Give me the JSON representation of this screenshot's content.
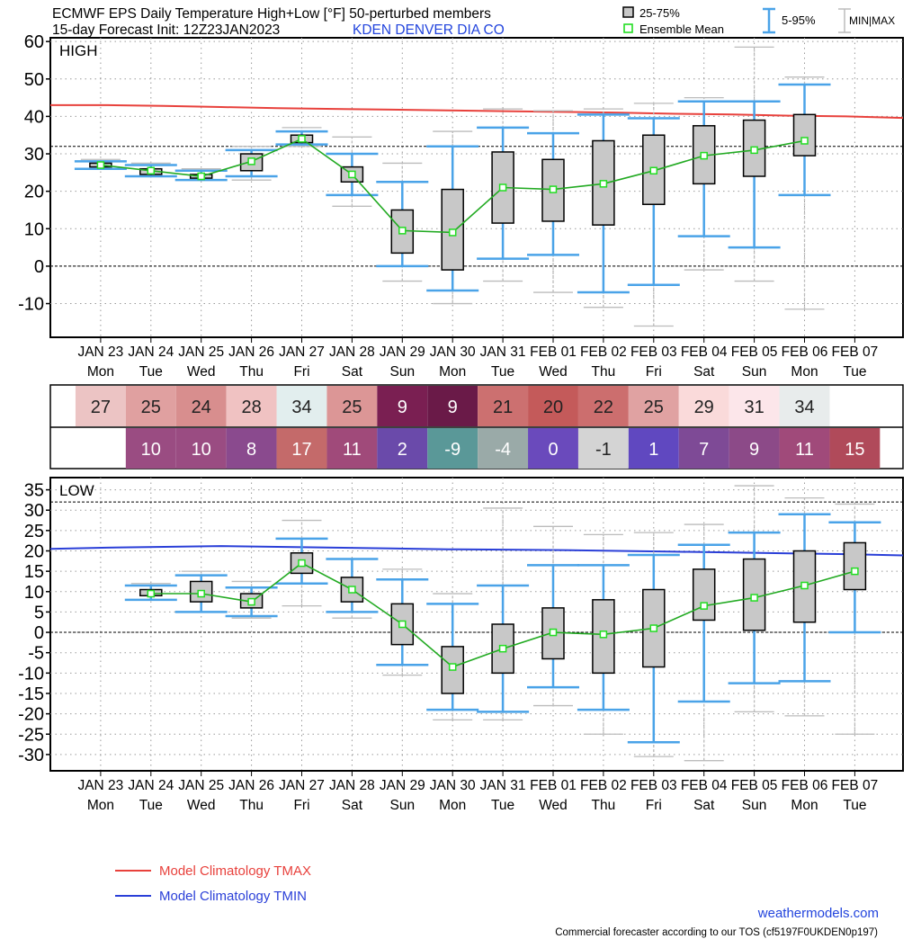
{
  "header": {
    "title_line1": "ECMWF EPS Daily Temperature High+Low [°F]  50-perturbed members",
    "title_line2": "15-day Forecast Init: 12Z23JAN2023",
    "station": "KDEN  DENVER  DIA     CO",
    "legend_box": "25-75%",
    "legend_mean": "Ensemble Mean",
    "legend_whisker": "5-95%",
    "legend_minmax": "MIN|MAX"
  },
  "colors": {
    "box_fill": "#c8c8c8",
    "whisker_blue": "#4aa3e8",
    "minmax_gray": "#bcbcbc",
    "mean_green": "#22aa22",
    "clim_tmax": "#e8413c",
    "clim_tmin": "#2a3fd8",
    "station_blue": "#2244dd"
  },
  "dates": [
    "JAN 23",
    "JAN 24",
    "JAN 25",
    "JAN 26",
    "JAN 27",
    "JAN 28",
    "JAN 29",
    "JAN 30",
    "JAN 31",
    "FEB 01",
    "FEB 02",
    "FEB 03",
    "FEB 04",
    "FEB 05",
    "FEB 06",
    "FEB 07"
  ],
  "weekdays": [
    "Mon",
    "Tue",
    "Wed",
    "Thu",
    "Fri",
    "Sat",
    "Sun",
    "Mon",
    "Tue",
    "Wed",
    "Thu",
    "Fri",
    "Sat",
    "Sun",
    "Mon",
    "Tue"
  ],
  "table": {
    "high_values": [
      27,
      25,
      24,
      28,
      34,
      25,
      9,
      9,
      21,
      20,
      22,
      25,
      29,
      31,
      34,
      null
    ],
    "high_colors": [
      "#ecc4c4",
      "#e0a0a0",
      "#d88e8e",
      "#f0c2c2",
      "#e2eeee",
      "#dc9696",
      "#7a1f52",
      "#6a1a48",
      "#cc7070",
      "#c45a5a",
      "#cc6e6e",
      "#e0a2a2",
      "#fadada",
      "#fce6ea",
      "#e8ecec",
      null
    ],
    "low_values": [
      null,
      10,
      10,
      8,
      17,
      11,
      2,
      -9,
      -4,
      0,
      -1,
      1,
      7,
      9,
      11,
      15
    ],
    "low_colors": [
      null,
      "#9a4c82",
      "#9a4c82",
      "#8a4a8e",
      "#c46a6a",
      "#a04a7a",
      "#6a4aaa",
      "#5a9898",
      "#9aaaa8",
      "#6a4abc",
      "#d4d4d4",
      "#6048c0",
      "#7e4a96",
      "#8c4a88",
      "#a04a7a",
      "#b04a5a"
    ]
  },
  "chart_data": [
    {
      "type": "box",
      "panel_label": "HIGH",
      "categories": [
        "JAN 23",
        "JAN 24",
        "JAN 25",
        "JAN 26",
        "JAN 27",
        "JAN 28",
        "JAN 29",
        "JAN 30",
        "JAN 31",
        "FEB 01",
        "FEB 02",
        "FEB 03",
        "FEB 04",
        "FEB 05",
        "FEB 06"
      ],
      "ylim": [
        -19,
        61
      ],
      "yticks": [
        -10,
        0,
        10,
        20,
        30,
        40,
        50,
        60
      ],
      "ref_lines": [
        32,
        0
      ],
      "min": [
        26,
        24,
        23,
        23,
        32,
        16,
        -4,
        -10,
        -4,
        -7,
        -11,
        -16,
        -1,
        -4,
        -11.5
      ],
      "p5": [
        26,
        24,
        23,
        24,
        32.5,
        19,
        0,
        -6.5,
        2,
        3,
        -7,
        -5,
        8,
        5,
        19
      ],
      "q1": [
        26.5,
        24.5,
        23.5,
        25.5,
        33,
        22.5,
        3.5,
        -1,
        11.5,
        12,
        11,
        16.5,
        22,
        24,
        29.5
      ],
      "mean": [
        27,
        25.5,
        24,
        28,
        34,
        24.5,
        9.5,
        9,
        21,
        20.5,
        22,
        25.5,
        29.5,
        31,
        33.5
      ],
      "q3": [
        27.5,
        26,
        24.5,
        30,
        35,
        26.5,
        15,
        20.5,
        30.5,
        28.5,
        33.5,
        35,
        37.5,
        39,
        40.5
      ],
      "p95": [
        28,
        27,
        25.5,
        31,
        36,
        30,
        22.5,
        32,
        37,
        35.5,
        40.5,
        39.5,
        44,
        44,
        48.5
      ],
      "max": [
        28.5,
        27.5,
        26,
        32,
        37,
        34.5,
        27.5,
        36,
        42,
        41.5,
        42,
        43.5,
        45,
        58.5,
        50.5
      ],
      "clim_tmax": {
        "name": "Model Climatology TMAX",
        "values": [
          43,
          43,
          42.8,
          42.5,
          42.2,
          42,
          41.8,
          41.6,
          41.4,
          41.2,
          41,
          40.7,
          40.5,
          40.2,
          40,
          39.6
        ]
      }
    },
    {
      "type": "box",
      "panel_label": "LOW",
      "categories": [
        "JAN 24",
        "JAN 25",
        "JAN 26",
        "JAN 27",
        "JAN 28",
        "JAN 29",
        "JAN 30",
        "JAN 31",
        "FEB 01",
        "FEB 02",
        "FEB 03",
        "FEB 04",
        "FEB 05",
        "FEB 06",
        "FEB 07"
      ],
      "ylim": [
        -34,
        38
      ],
      "yticks": [
        -30,
        -25,
        -20,
        -15,
        -10,
        -5,
        0,
        5,
        10,
        15,
        20,
        25,
        30,
        35
      ],
      "ref_lines": [
        32,
        0
      ],
      "min": [
        8,
        5,
        3.5,
        6.5,
        3.5,
        -10.5,
        -21.5,
        -21.5,
        -18,
        -25,
        -30.5,
        -31.5,
        -19.5,
        -20.5,
        -25
      ],
      "p5": [
        8,
        5,
        4,
        12,
        5,
        -8,
        -19,
        -19.5,
        -13.5,
        -19,
        -27,
        -17,
        -12.5,
        -12,
        0
      ],
      "q1": [
        9,
        7.5,
        6,
        14.5,
        7.5,
        -3,
        -15,
        -10,
        -6.5,
        -10,
        -8.5,
        3,
        0.5,
        2.5,
        10.5
      ],
      "mean": [
        9.5,
        9.5,
        7.5,
        17,
        10.5,
        2,
        -8.5,
        -4,
        0,
        -0.5,
        1,
        6.5,
        8.5,
        11.5,
        15
      ],
      "q3": [
        10.5,
        12.5,
        9.5,
        19.5,
        13.5,
        7,
        -3.5,
        2,
        6,
        8,
        10.5,
        15.5,
        18,
        20,
        22
      ],
      "p95": [
        11.5,
        14,
        11,
        23,
        18,
        13,
        7,
        11.5,
        16.5,
        16.5,
        19,
        21.5,
        24.5,
        29,
        27
      ],
      "max": [
        12,
        15,
        12.5,
        27.5,
        18,
        15.5,
        9.5,
        30.5,
        26,
        24,
        24.5,
        26.5,
        36,
        33,
        31.5
      ],
      "clim_tmin": {
        "name": "Model Climatology TMIN",
        "values": [
          20.5,
          20.8,
          21,
          21.2,
          21,
          20.8,
          20.6,
          20.4,
          20.3,
          20.2,
          20,
          19.8,
          19.6,
          19.4,
          19.2,
          18.9
        ]
      }
    }
  ],
  "footer": {
    "clim_tmax_label": "Model Climatology TMAX",
    "clim_tmin_label": "Model Climatology TMIN",
    "site": "weathermodels.com",
    "tos": "Commercial forecaster according to our TOS (cf5197F0UKDEN0p197)"
  }
}
